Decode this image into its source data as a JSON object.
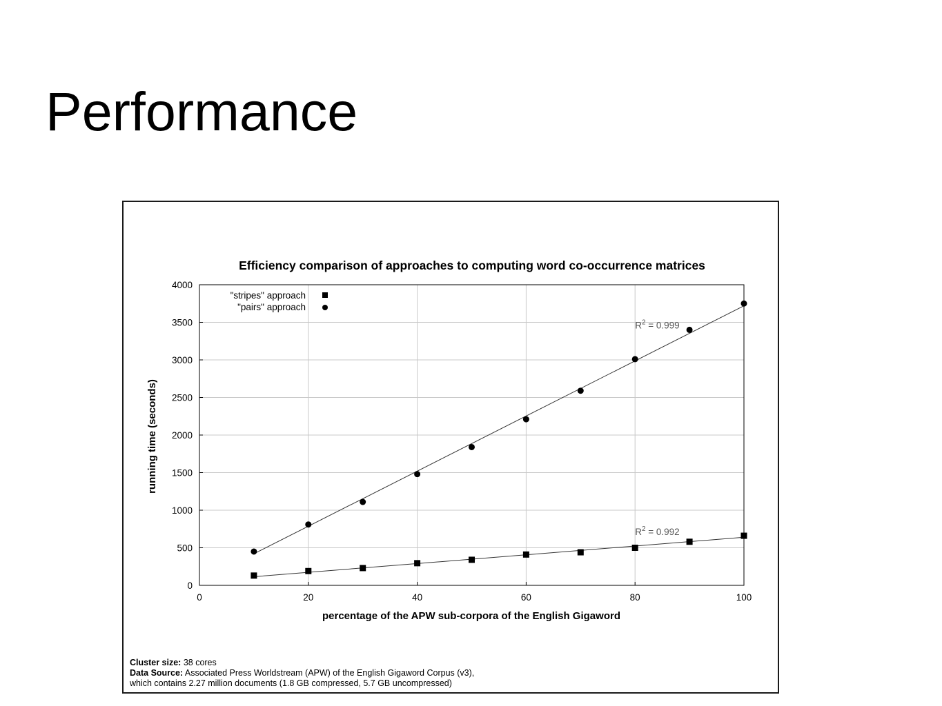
{
  "slide": {
    "title": "Performance"
  },
  "chart_data": {
    "type": "scatter",
    "title": "Efficiency comparison of approaches to computing word co-occurrence matrices",
    "xlabel": "percentage of the APW sub-corpora of the English Gigaword",
    "ylabel": "running time (seconds)",
    "xlim": [
      0,
      100
    ],
    "ylim": [
      0,
      4000
    ],
    "xticks": [
      0,
      20,
      40,
      60,
      80,
      100
    ],
    "yticks": [
      0,
      500,
      1000,
      1500,
      2000,
      2500,
      3000,
      3500,
      4000
    ],
    "grid": true,
    "legend_position": "top-left",
    "series": [
      {
        "name": "\"stripes\" approach",
        "marker": "square",
        "x": [
          10,
          20,
          30,
          40,
          50,
          60,
          70,
          80,
          90,
          100
        ],
        "y": [
          130,
          190,
          230,
          295,
          340,
          410,
          440,
          500,
          580,
          660
        ],
        "fit": {
          "x": [
            10,
            100
          ],
          "y": [
            115,
            640
          ]
        },
        "annotation": {
          "label": "R",
          "sup": "2",
          "rest": " = 0.992"
        }
      },
      {
        "name": "\"pairs\" approach",
        "marker": "circle",
        "x": [
          10,
          20,
          30,
          40,
          50,
          60,
          70,
          80,
          90,
          100
        ],
        "y": [
          450,
          810,
          1110,
          1480,
          1840,
          2210,
          2590,
          3010,
          3400,
          3750
        ],
        "fit": {
          "x": [
            10,
            100
          ],
          "y": [
            420,
            3720
          ]
        },
        "annotation": {
          "label": "R",
          "sup": "2",
          "rest": " = 0.999"
        }
      }
    ],
    "footnote": {
      "cluster_label": "Cluster size:",
      "cluster_value": " 38 cores",
      "source_label": "Data Source:",
      "source_value": " Associated Press Worldstream (APW) of the English Gigaword Corpus (v3),",
      "source_line2": "which contains 2.27 million documents (1.8 GB compressed, 5.7 GB uncompressed)"
    }
  }
}
